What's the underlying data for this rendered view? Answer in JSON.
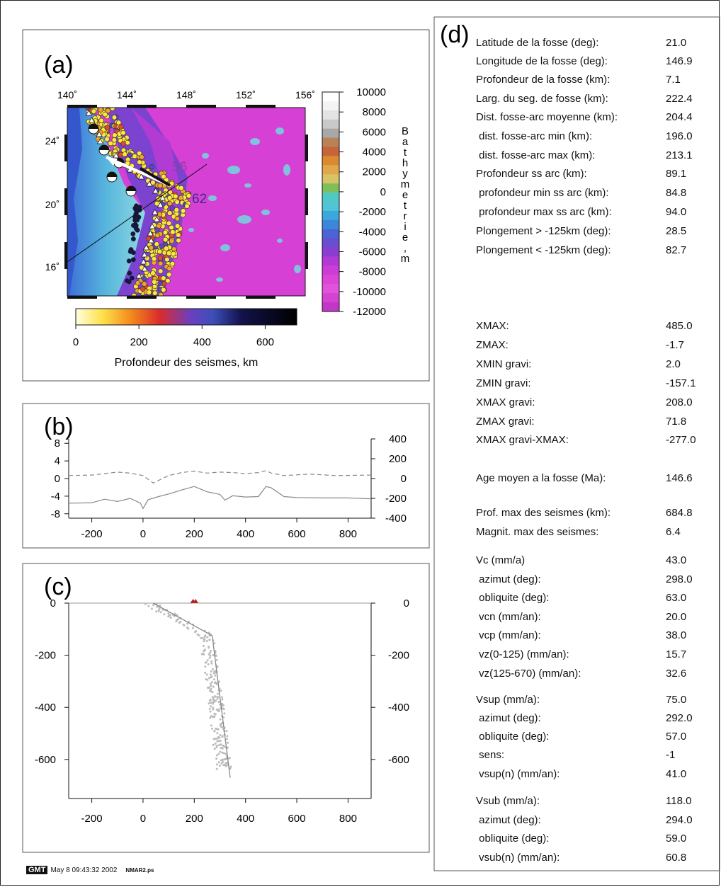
{
  "panels": {
    "a": "(a)",
    "b": "(b)",
    "c": "(c)",
    "d": "(d)"
  },
  "map": {
    "lon_ticks": [
      "140˚",
      "144˚",
      "148˚",
      "152˚",
      "156˚"
    ],
    "lat_ticks": [
      "24˚",
      "20˚",
      "16˚"
    ],
    "trench_labels": [
      "56",
      "62"
    ],
    "bathy_ticks": [
      "10000",
      "8000",
      "6000",
      "4000",
      "2000",
      "0",
      "-2000",
      "-4000",
      "-6000",
      "-8000",
      "-10000",
      "-12000"
    ],
    "bathy_label_chars": [
      "B",
      "a",
      "t",
      "h",
      "y",
      "m",
      "e",
      "t",
      "r",
      "i",
      "e",
      ",",
      "m"
    ],
    "depth_ticks": [
      "0",
      "200",
      "400",
      "600"
    ],
    "depth_label": "Profondeur des seismes, km",
    "bathy_colors": [
      "#ffffff",
      "#f4f4f4",
      "#e3e3e3",
      "#c9c9c9",
      "#a8a8a8",
      "#b88358",
      "#c8643a",
      "#db8a2f",
      "#e0a84a",
      "#d8c466",
      "#7fbf5a",
      "#4fc9c6",
      "#52c4d6",
      "#3ba7dc",
      "#3b88d8",
      "#4b63d4",
      "#6a4ed0",
      "#8a3ed1",
      "#b13ad6",
      "#cc3cd6",
      "#dc45d8",
      "#e352dc",
      "#d444d0",
      "#c337c6"
    ]
  },
  "chart_data": [
    {
      "type": "line",
      "panel": "b",
      "x_ticks": [
        "-200",
        "0",
        "200",
        "400",
        "600",
        "800"
      ],
      "y_left_ticks": [
        "8",
        "4",
        "0",
        "-4",
        "-8"
      ],
      "y_right_ticks": [
        "400",
        "200",
        "0",
        "-200",
        "-400"
      ],
      "xlim": [
        -290,
        890
      ],
      "ylim_left": [
        -9,
        9
      ],
      "ylim_right": [
        -400,
        400
      ],
      "series": [
        {
          "style": "dashed",
          "axis": "right",
          "x": [
            -290,
            -200,
            -100,
            -50,
            0,
            40,
            100,
            150,
            200,
            250,
            300,
            350,
            400,
            450,
            480,
            500,
            550,
            650,
            750,
            890
          ],
          "y": [
            30,
            35,
            65,
            55,
            30,
            -45,
            30,
            60,
            75,
            55,
            65,
            60,
            50,
            60,
            80,
            55,
            30,
            45,
            30,
            35
          ]
        },
        {
          "style": "solid",
          "axis": "left",
          "x": [
            -290,
            -200,
            -150,
            -100,
            -50,
            -10,
            0,
            20,
            60,
            100,
            150,
            200,
            250,
            300,
            320,
            350,
            400,
            450,
            480,
            500,
            550,
            600,
            700,
            800,
            890
          ],
          "y": [
            -5.6,
            -5.5,
            -4.7,
            -5.2,
            -4.5,
            -5.6,
            -6.8,
            -4.8,
            -4.1,
            -3.5,
            -2.6,
            -1.8,
            -3.0,
            -3.6,
            -4.9,
            -3.9,
            -4.2,
            -4.1,
            -1.8,
            -2.1,
            -4.1,
            -4.3,
            -4.4,
            -4.4,
            -4.6
          ]
        }
      ]
    },
    {
      "type": "scatter",
      "panel": "c",
      "x_ticks": [
        "-200",
        "0",
        "200",
        "400",
        "600",
        "800"
      ],
      "y_left_ticks": [
        "0",
        "-200",
        "-400",
        "-600"
      ],
      "y_right_ticks": [
        "0",
        "-200",
        "-400",
        "-600"
      ],
      "xlim": [
        -290,
        890
      ],
      "ylim": [
        -750,
        0
      ],
      "slab_x": [
        40,
        270,
        340
      ],
      "slab_y": [
        0,
        -125,
        -670
      ],
      "volcano_x": [
        195,
        205
      ]
    }
  ],
  "params": [
    {
      "label": "Latitude de la fosse (deg):",
      "value": "21.0"
    },
    {
      "label": "Longitude de la fosse (deg):",
      "value": "146.9"
    },
    {
      "label": "Profondeur de la fosse (km):",
      "value": "7.1"
    },
    {
      "label": "Larg. du seg. de fosse (km):",
      "value": "222.4"
    },
    {
      "label": "Dist. fosse-arc moyenne (km):",
      "value": "204.4"
    },
    {
      "label": " dist. fosse-arc min (km):",
      "value": "196.0"
    },
    {
      "label": " dist. fosse-arc max (km):",
      "value": "213.1"
    },
    {
      "label": "Profondeur ss arc (km):",
      "value": "89.1"
    },
    {
      "label": " profondeur min ss arc (km):",
      "value": "84.8"
    },
    {
      "label": " profondeur max ss arc (km):",
      "value": "94.0"
    },
    {
      "label": "Plongement > -125km (deg):",
      "value": "28.5"
    },
    {
      "label": "Plongement < -125km (deg):",
      "value": "82.7"
    },
    {
      "label": "XMAX:",
      "value": "485.0"
    },
    {
      "label": "ZMAX:",
      "value": "-1.7"
    },
    {
      "label": "XMIN gravi:",
      "value": "2.0"
    },
    {
      "label": "ZMIN gravi:",
      "value": "-157.1"
    },
    {
      "label": "XMAX gravi:",
      "value": "208.0"
    },
    {
      "label": "ZMAX gravi:",
      "value": "71.8"
    },
    {
      "label": "XMAX gravi-XMAX:",
      "value": "-277.0"
    },
    {
      "label": "Age moyen a la fosse (Ma):",
      "value": "146.6"
    },
    {
      "label": "Prof. max des seismes (km):",
      "value": "684.8"
    },
    {
      "label": "Magnit. max des seismes:",
      "value": "6.4"
    },
    {
      "label": "Vc (mm/a)",
      "value": "43.0"
    },
    {
      "label": " azimut (deg):",
      "value": "298.0"
    },
    {
      "label": " obliquite (deg):",
      "value": "63.0"
    },
    {
      "label": " vcn (mm/an):",
      "value": "20.0"
    },
    {
      "label": " vcp (mm/an):",
      "value": "38.0"
    },
    {
      "label": " vz(0-125) (mm/an):",
      "value": "15.7"
    },
    {
      "label": " vz(125-670) (mm/an):",
      "value": "32.6"
    },
    {
      "label": "Vsup (mm/a):",
      "value": "75.0"
    },
    {
      "label": " azimut (deg):",
      "value": "292.0"
    },
    {
      "label": " obliquite (deg):",
      "value": "57.0"
    },
    {
      "label": " sens:",
      "value": "-1"
    },
    {
      "label": " vsup(n) (mm/an):",
      "value": "41.0"
    },
    {
      "label": "Vsub (mm/a):",
      "value": "118.0"
    },
    {
      "label": " azimut (deg):",
      "value": "294.0"
    },
    {
      "label": " obliquite (deg):",
      "value": "59.0"
    },
    {
      "label": " vsub(n) (mm/an):",
      "value": "60.8"
    }
  ],
  "footer": {
    "logo": "GMT",
    "date": "May  8 09:43:32 2002",
    "file": "NMAR2.ps"
  }
}
